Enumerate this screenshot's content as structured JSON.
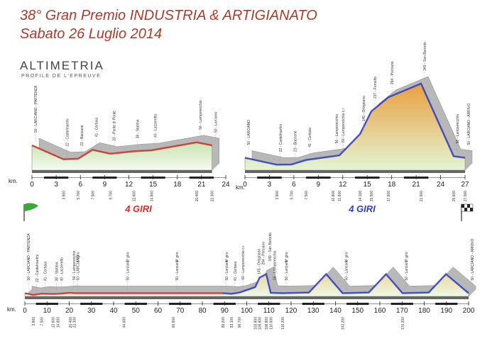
{
  "header": {
    "title": "38° Gran Premio INDUSTRIA & ARTIGIANATO",
    "subtitle": "Sabato 26 Luglio 2014",
    "section": "ALTIMETRIA",
    "section_sub": "PROFILE DE L'EPREUVE"
  },
  "chart_data": [
    {
      "type": "area",
      "xlabel": "km.",
      "xlim": [
        0,
        24
      ],
      "xticks": [
        0,
        3,
        6,
        9,
        12,
        15,
        18,
        21,
        24
      ],
      "ylim": [
        0,
        100
      ],
      "line_color": "#d03030",
      "fill_colors": [
        "#c8e4b0",
        "#f4fbef"
      ],
      "x": [
        0,
        3.9,
        5.7,
        7.5,
        9.7,
        12.6,
        14.8,
        20.4,
        22.3
      ],
      "values": [
        50,
        22,
        23,
        41,
        33,
        38,
        40,
        56,
        50
      ],
      "point_labels": [
        "50 - LARCIANO - PARTENZA",
        "22 - Castelmartini",
        "23 - Baccane",
        "41 - Cerbaia",
        "33 - Ponte di Ponte",
        "38 - Stabbia",
        "40 - Lazzeretto",
        "56 - Lamporecchio",
        "50 - Larciano"
      ],
      "x_labels": [
        null,
        "3.900",
        "5.700",
        "7.500",
        "9.700",
        "12.600",
        "14.800",
        "20.400",
        "22.300"
      ]
    },
    {
      "type": "area",
      "xlabel": "km.",
      "xlim": [
        0,
        27
      ],
      "xticks": [
        0,
        3,
        6,
        9,
        12,
        15,
        18,
        21,
        24,
        27
      ],
      "ylim": [
        0,
        400
      ],
      "line_color": "#3040c0",
      "fill_colors": [
        "#e8a040",
        "#e4f4d4"
      ],
      "x": [
        0,
        3.9,
        5.7,
        7.5,
        10.8,
        11.6,
        14.1,
        15.5,
        17.6,
        21.6,
        25.6,
        27
      ],
      "values": [
        50,
        22,
        23,
        41,
        56,
        60,
        145,
        237,
        294,
        349,
        56,
        50
      ],
      "point_labels": [
        "50 - LARCIANO",
        "22 - Castelmartini",
        "23 - Baccane",
        "41 - Cerbaia",
        "56 - Lamporecchio",
        "60 - Lamporecchio c.i.",
        "145 - Orbignano",
        "237 - Fornello",
        "294 - Porciano",
        "349 - San Baronto",
        "56 - Lamporecchio",
        "50 - LARCIANO - ARRIVO"
      ],
      "x_labels": [
        null,
        "3.900",
        "5.700",
        "7.500",
        "10.800",
        "11.600",
        "14.100",
        "15.500",
        "17.600",
        "21.600",
        "25.600",
        "27.000"
      ]
    },
    {
      "type": "area",
      "xlabel": "km.",
      "xlim": [
        0,
        200
      ],
      "xticks": [
        0,
        10,
        20,
        30,
        40,
        50,
        60,
        70,
        80,
        90,
        100,
        110,
        120,
        130,
        140,
        150,
        160,
        170,
        180,
        190,
        200
      ],
      "ylim": [
        0,
        400
      ],
      "line_colors": [
        "#d03030",
        "#3040c0"
      ],
      "fill_colors": [
        "#e8d8a0",
        "#eef8e4"
      ],
      "x": [
        0,
        3.8,
        7.5,
        12.6,
        14.8,
        20.4,
        22.3,
        44.6,
        66.9,
        89.2,
        93.1,
        96.7,
        103.8,
        105.8,
        108.8,
        110.8,
        116.2,
        128,
        135.8,
        143.2,
        155,
        162.8,
        170.2,
        182,
        189.8,
        200
      ],
      "values": [
        50,
        22,
        41,
        38,
        40,
        56,
        50,
        50,
        50,
        50,
        41,
        60,
        145,
        294,
        349,
        56,
        50,
        60,
        349,
        50,
        60,
        349,
        50,
        60,
        349,
        50
      ],
      "point_labels": [
        "50 - LARCIANO - PARTENZA",
        "22 - Castelmartini",
        "41 - Cerbaia",
        "38 - Stabbia",
        "40 - Lazzeretto",
        "56 - Lamporecchio",
        "50 - LARCIANO",
        "50 - Larciano",
        "50 - Larciano",
        "50 - Larciano",
        "41 - Cerbaia",
        "60 - Lamporecchio c.i.",
        "145 - Orbignano",
        "294 - Porciano",
        "349 - San Baronto",
        "56 - Lamporecchio",
        "50 - Larciano",
        null,
        null,
        "50 - Larciano",
        null,
        null,
        "50 - Larciano",
        null,
        null,
        "50 - LARCIANO - ARRIVO"
      ],
      "x_labels": [
        null,
        "3.800",
        "7.500",
        "12.600",
        "14.800",
        "20.400",
        "22.300",
        "44.600",
        "66.900",
        "89.200",
        "93.100",
        "96.700",
        "103.800",
        "105.800",
        "108.800",
        "110.800",
        "116.200",
        null,
        null,
        "143.200",
        null,
        null,
        "170.200",
        null,
        null,
        null
      ],
      "laps": [
        {
          "x": 22.3,
          "label": "1° giro"
        },
        {
          "x": 44.6,
          "label": "2° giro"
        },
        {
          "x": 66.9,
          "label": "3° giro"
        },
        {
          "x": 89.2,
          "label": "4° giro"
        },
        {
          "x": 116.2,
          "label": "5° giro"
        },
        {
          "x": 143.2,
          "label": "6° giro"
        },
        {
          "x": 170.2,
          "label": "7° giro"
        }
      ],
      "lap_titles": [
        "4 GIRI",
        "4 GIRI"
      ]
    }
  ]
}
